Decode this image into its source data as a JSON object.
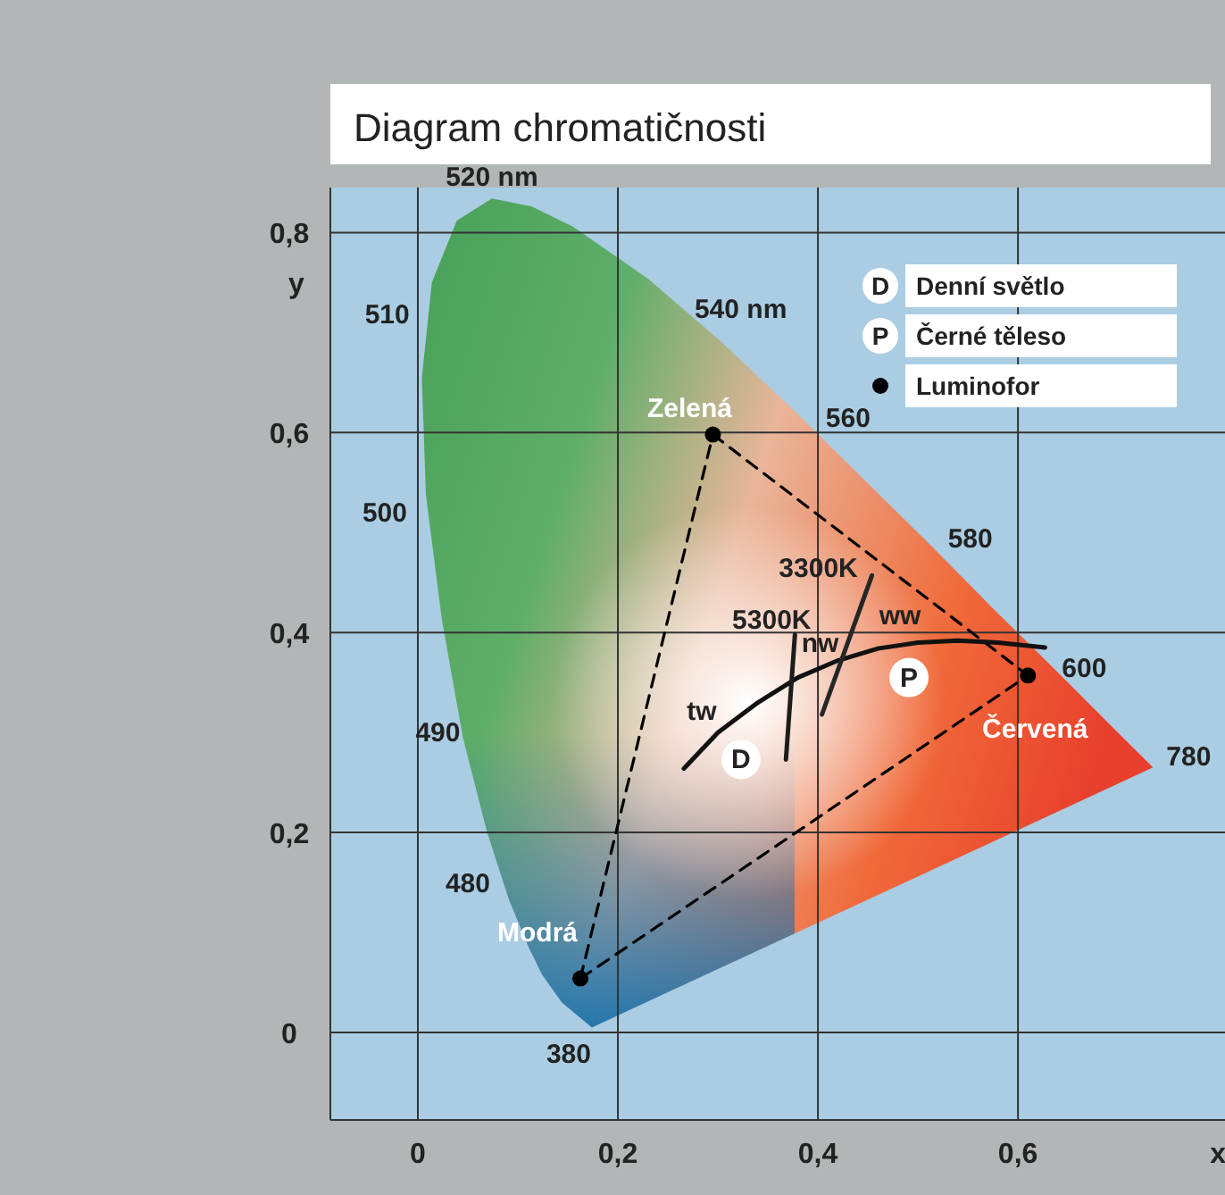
{
  "chart_data": {
    "type": "line",
    "title": "Diagram chromatičnosti",
    "xlabel": "x",
    "ylabel": "y",
    "xlim": [
      -0.0875,
      0.807
    ],
    "ylim": [
      -0.0875,
      0.845
    ],
    "xticks": [
      {
        "value": 0,
        "label": "0"
      },
      {
        "value": 0.2,
        "label": "0,2"
      },
      {
        "value": 0.4,
        "label": "0,4"
      },
      {
        "value": 0.6,
        "label": "0,6"
      }
    ],
    "yticks": [
      {
        "value": 0,
        "label": "0"
      },
      {
        "value": 0.2,
        "label": "0,2"
      },
      {
        "value": 0.4,
        "label": "0,4"
      },
      {
        "value": 0.6,
        "label": "0,6"
      },
      {
        "value": 0.8,
        "label": "0,8"
      }
    ],
    "grid": true,
    "legend": "top right",
    "annotations": [
      {
        "text": "520 nm",
        "x": 0.074,
        "y": 0.834
      },
      {
        "text": "510",
        "x": 0.014,
        "y": 0.75
      },
      {
        "text": "500",
        "x": 0.008,
        "y": 0.538
      },
      {
        "text": "490",
        "x": 0.045,
        "y": 0.295
      },
      {
        "text": "480",
        "x": 0.091,
        "y": 0.133
      },
      {
        "text": "380",
        "x": 0.174,
        "y": 0.005
      },
      {
        "text": "540 nm",
        "x": 0.23,
        "y": 0.754
      },
      {
        "text": "560",
        "x": 0.373,
        "y": 0.625
      },
      {
        "text": "580",
        "x": 0.513,
        "y": 0.487
      },
      {
        "text": "600",
        "x": 0.627,
        "y": 0.373
      },
      {
        "text": "780",
        "x": 0.735,
        "y": 0.265
      },
      {
        "text": "Zelená",
        "x": 0.295,
        "y": 0.598
      },
      {
        "text": "Modrá",
        "x": 0.1625,
        "y": 0.054
      },
      {
        "text": "Červená",
        "x": 0.61,
        "y": 0.357
      },
      {
        "text": "tw",
        "x": 0.266,
        "y": 0.264
      },
      {
        "text": "nw",
        "x": 0.42,
        "y": 0.372
      },
      {
        "text": "ww",
        "x": 0.5,
        "y": 0.39
      },
      {
        "text": "5300K",
        "x": 0.377,
        "y": 0.398
      },
      {
        "text": "3300K",
        "x": 0.454,
        "y": 0.457
      },
      {
        "text": "D",
        "x": 0.323,
        "y": 0.273
      },
      {
        "text": "P",
        "x": 0.491,
        "y": 0.355
      }
    ],
    "series": [
      {
        "type": "area",
        "color": "#3c9a50",
        "x": [
          0.174,
          0.144,
          0.124,
          0.11,
          0.091,
          0.069,
          0.045,
          0.024,
          0.008,
          0.004,
          0.014,
          0.039,
          0.074,
          0.114,
          0.155,
          0.23,
          0.302,
          0.373,
          0.444,
          0.513,
          0.575,
          0.627,
          0.692,
          0.735
        ],
        "values": [
          0.005,
          0.03,
          0.058,
          0.087,
          0.133,
          0.201,
          0.295,
          0.413,
          0.538,
          0.655,
          0.75,
          0.812,
          0.834,
          0.826,
          0.806,
          0.754,
          0.692,
          0.625,
          0.555,
          0.487,
          0.424,
          0.373,
          0.308,
          0.265
        ]
      },
      {
        "color": "#000000",
        "line_style": "dashed",
        "marker": "none",
        "x": [
          0.1625,
          0.295
        ],
        "values": [
          0.054,
          0.598
        ]
      },
      {
        "color": "#000000",
        "line_style": "dashed",
        "marker": "none",
        "x": [
          0.295,
          0.61
        ],
        "values": [
          0.598,
          0.357
        ]
      },
      {
        "color": "#000000",
        "line_style": "dashed",
        "marker": "none",
        "x": [
          0.1625,
          0.61
        ],
        "values": [
          0.054,
          0.357
        ]
      },
      {
        "color": "#111111",
        "line_style": "solid",
        "marker": "none",
        "x": [
          0.266,
          0.3,
          0.34,
          0.38,
          0.42,
          0.46,
          0.5,
          0.54,
          0.58,
          0.627
        ],
        "values": [
          0.264,
          0.3,
          0.33,
          0.355,
          0.372,
          0.384,
          0.39,
          0.392,
          0.39,
          0.385
        ]
      },
      {
        "color": "#1c1c1c",
        "line_style": "solid",
        "marker": "none",
        "x": [
          0.368,
          0.377
        ],
        "values": [
          0.273,
          0.398
        ]
      },
      {
        "color": "#262626",
        "line_style": "solid",
        "marker": "none",
        "x": [
          0.404,
          0.454
        ],
        "values": [
          0.318,
          0.457
        ]
      },
      {
        "type": "scatter",
        "name": "Denní světlo",
        "color": "#ffffff",
        "marker": "circle",
        "x": [
          0.323
        ],
        "values": [
          0.273
        ]
      },
      {
        "type": "scatter",
        "name": "Černé těleso",
        "color": "#ffffff",
        "marker": "circle",
        "x": [
          0.491
        ],
        "values": [
          0.355
        ]
      },
      {
        "type": "scatter",
        "name": "Luminofor",
        "color": "#000000",
        "marker": "circle",
        "x": [
          0.295,
          0.61,
          0.1625
        ],
        "values": [
          0.598,
          0.357,
          0.054
        ]
      }
    ]
  }
}
